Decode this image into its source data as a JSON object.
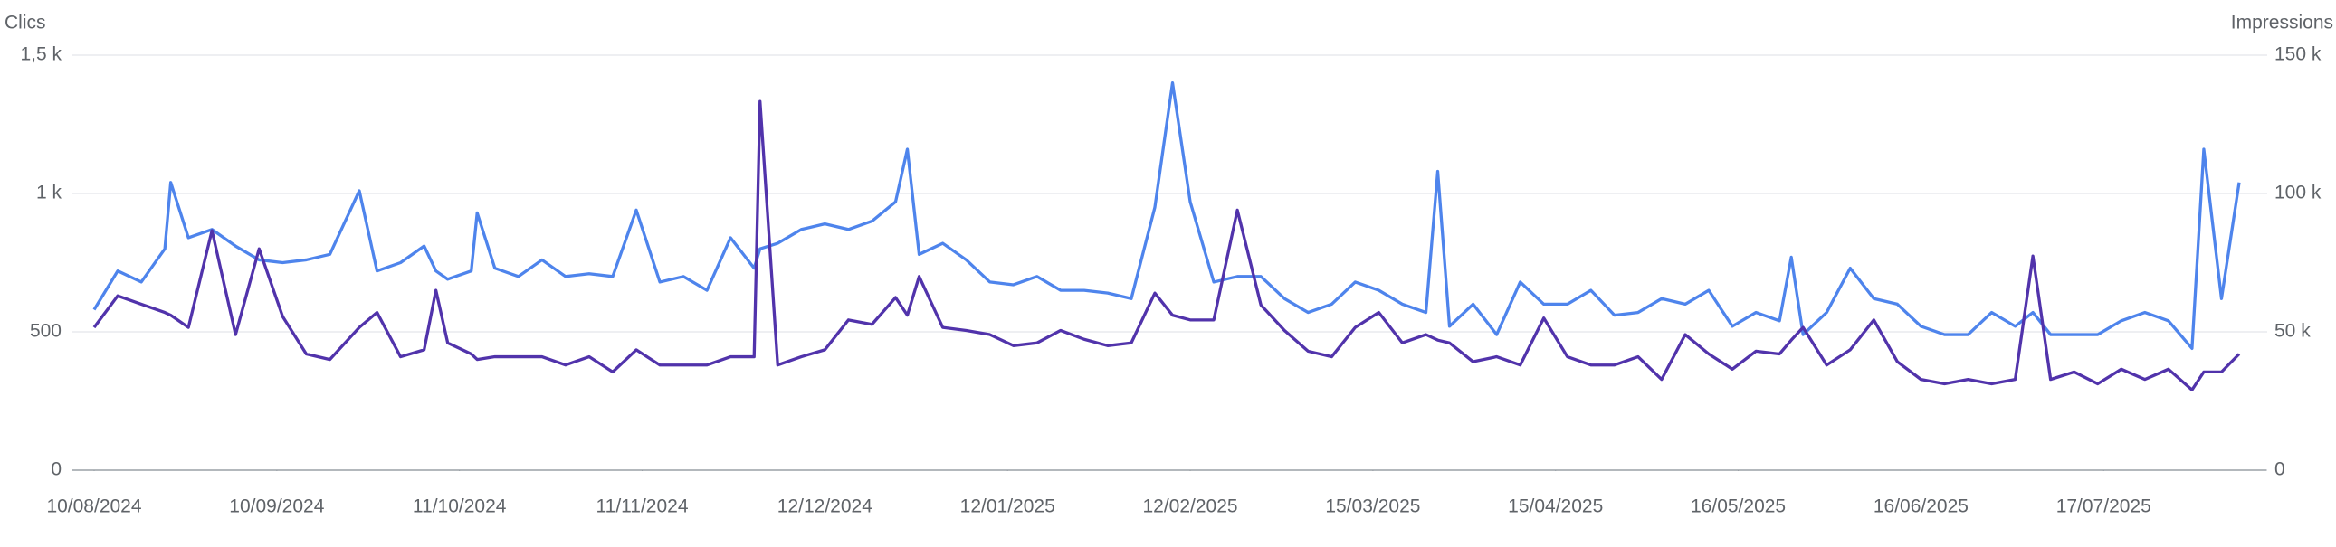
{
  "chart_data": {
    "type": "line",
    "y_label": "Clics",
    "y2_label": "Impressions",
    "x": [
      "10/08/2024",
      "14/08/2024",
      "18/08/2024",
      "22/08/2024",
      "23/08/2024",
      "26/08/2024",
      "30/08/2024",
      "03/09/2024",
      "07/09/2024",
      "11/09/2024",
      "15/09/2024",
      "19/09/2024",
      "24/09/2024",
      "27/09/2024",
      "01/10/2024",
      "05/10/2024",
      "07/10/2024",
      "09/10/2024",
      "13/10/2024",
      "14/10/2024",
      "17/10/2024",
      "21/10/2024",
      "25/10/2024",
      "29/10/2024",
      "02/11/2024",
      "06/11/2024",
      "10/11/2024",
      "14/11/2024",
      "18/11/2024",
      "22/11/2024",
      "26/11/2024",
      "30/11/2024",
      "01/12/2024",
      "04/12/2024",
      "08/12/2024",
      "12/12/2024",
      "16/12/2024",
      "20/12/2024",
      "24/12/2024",
      "26/12/2024",
      "28/12/2024",
      "01/01/2025",
      "05/01/2025",
      "09/01/2025",
      "13/01/2025",
      "17/01/2025",
      "21/01/2025",
      "25/01/2025",
      "29/01/2025",
      "02/02/2025",
      "06/02/2025",
      "09/02/2025",
      "12/02/2025",
      "16/02/2025",
      "20/02/2025",
      "24/02/2025",
      "28/02/2025",
      "04/03/2025",
      "08/03/2025",
      "12/03/2025",
      "16/03/2025",
      "20/03/2025",
      "24/03/2025",
      "26/03/2025",
      "28/03/2025",
      "01/04/2025",
      "05/04/2025",
      "09/04/2025",
      "13/04/2025",
      "17/04/2025",
      "21/04/2025",
      "25/04/2025",
      "29/04/2025",
      "03/05/2025",
      "07/05/2025",
      "11/05/2025",
      "15/05/2025",
      "19/05/2025",
      "23/05/2025",
      "25/05/2025",
      "27/05/2025",
      "31/05/2025",
      "04/06/2025",
      "08/06/2025",
      "12/06/2025",
      "16/06/2025",
      "20/06/2025",
      "24/06/2025",
      "28/06/2025",
      "02/07/2025",
      "05/07/2025",
      "08/07/2025",
      "12/07/2025",
      "16/07/2025",
      "20/07/2025",
      "24/07/2025",
      "28/07/2025",
      "01/08/2025",
      "03/08/2025",
      "06/08/2025",
      "09/08/2025"
    ],
    "xlim": [
      "10/08/2024",
      "09/08/2025"
    ],
    "xticks": [
      "10/08/2024",
      "10/09/2024",
      "11/10/2024",
      "11/11/2024",
      "12/12/2024",
      "12/01/2025",
      "12/02/2025",
      "15/03/2025",
      "15/04/2025",
      "16/05/2025",
      "16/06/2025",
      "17/07/2025"
    ],
    "ylim": [
      0,
      1500
    ],
    "yticks": [
      0,
      500,
      {
        "value": 1000,
        "label": "1 k"
      },
      {
        "value": 1500,
        "label": "1,5 k"
      }
    ],
    "y2lim": [
      0,
      150000
    ],
    "y2ticks": [
      0,
      {
        "value": 50000,
        "label": "50 k"
      },
      {
        "value": 100000,
        "label": "100 k"
      },
      {
        "value": 150000,
        "label": "150 k"
      }
    ],
    "grid": true,
    "series": [
      {
        "name": "Impressions",
        "axis": "y2",
        "color": "#4e84ec",
        "values": [
          58000,
          72000,
          68000,
          80000,
          104000,
          84000,
          87000,
          81000,
          76000,
          75000,
          76000,
          78000,
          101000,
          72000,
          75000,
          81000,
          72000,
          69000,
          72000,
          93000,
          73000,
          70000,
          76000,
          70000,
          71000,
          70000,
          94000,
          68000,
          70000,
          65000,
          84000,
          73000,
          80000,
          82000,
          87000,
          89000,
          87000,
          90000,
          97000,
          116000,
          78000,
          82000,
          76000,
          68000,
          67000,
          70000,
          65000,
          65000,
          64000,
          62000,
          95000,
          140000,
          97000,
          68000,
          70000,
          70000,
          62000,
          57000,
          60000,
          68000,
          65000,
          60000,
          57000,
          108000,
          52000,
          60000,
          49000,
          68000,
          60000,
          60000,
          65000,
          56000,
          57000,
          62000,
          60000,
          65000,
          52000,
          57000,
          54000,
          77000,
          49000,
          57000,
          73000,
          62000,
          60000,
          52000,
          49000,
          49000,
          57000,
          52000,
          57000,
          49000,
          49000,
          49000,
          54000,
          57000,
          54000,
          44000,
          116000,
          62000,
          104000
        ]
      },
      {
        "name": "Clics",
        "color": "#5133ab",
        "values": [
          516,
          630,
          600,
          570,
          560,
          516,
          866,
          490,
          800,
          555,
          420,
          400,
          516,
          570,
          410,
          435,
          650,
          460,
          420,
          400,
          410,
          410,
          410,
          380,
          410,
          355,
          435,
          380,
          380,
          380,
          410,
          410,
          1333,
          380,
          410,
          435,
          543,
          527,
          624,
          560,
          700,
          516,
          505,
          490,
          450,
          460,
          505,
          473,
          450,
          460,
          640,
          560,
          543,
          543,
          940,
          597,
          505,
          430,
          410,
          516,
          570,
          460,
          490,
          470,
          460,
          392,
          410,
          380,
          550,
          410,
          380,
          380,
          410,
          328,
          490,
          420,
          365,
          430,
          420,
          470,
          516,
          380,
          435,
          543,
          392,
          328,
          312,
          328,
          312,
          328,
          774,
          328,
          355,
          312,
          365,
          328,
          365,
          290,
          355,
          355,
          420
        ]
      }
    ]
  }
}
